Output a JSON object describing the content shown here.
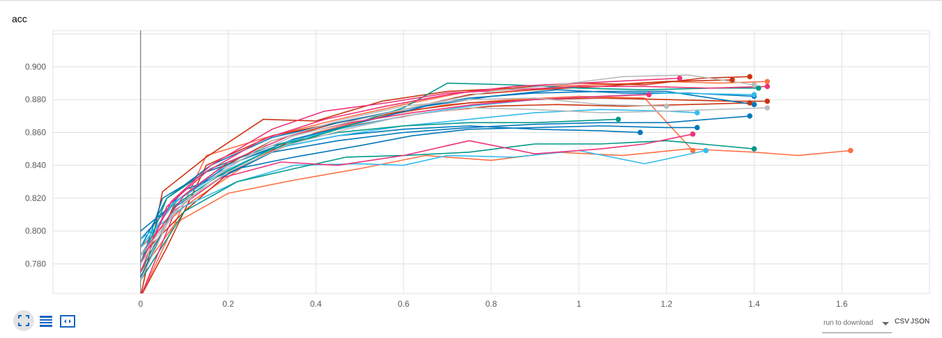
{
  "title": "acc",
  "toolbar": {
    "expand_icon": "fullscreen-icon",
    "log_icon": "list-icon",
    "fit_icon": "fit-domain-icon",
    "run_select_label": "run to download",
    "csv_label": "CSV",
    "json_label": "JSON"
  },
  "colors": {
    "accent": "#1565c0",
    "grid": "#e0e0e0",
    "axis": "#5a5a5a",
    "zero_line": "#616161"
  },
  "chart_data": {
    "type": "line",
    "title": "acc",
    "xlabel": "",
    "ylabel": "",
    "xlim": [
      -0.2,
      1.8
    ],
    "ylim": [
      0.762,
      0.922
    ],
    "x_ticks": [
      "0",
      "0.2",
      "0.4",
      "0.6",
      "0.8",
      "1",
      "1.2",
      "1.4",
      "1.6"
    ],
    "y_ticks": [
      "0.780",
      "0.800",
      "0.820",
      "0.840",
      "0.860",
      "0.880",
      "0.900"
    ],
    "grid": true,
    "legend": "none",
    "series": [
      {
        "color": "#ff7043",
        "x": [
          0,
          0.15,
          0.3,
          0.45,
          0.6,
          0.75,
          0.9,
          1.05,
          1.2,
          1.32,
          1.43
        ],
        "y": [
          0.76,
          0.846,
          0.858,
          0.868,
          0.877,
          0.885,
          0.888,
          0.889,
          0.891,
          0.89,
          0.891
        ]
      },
      {
        "color": "#ff7043",
        "x": [
          0,
          0.08,
          0.2,
          0.35,
          0.5,
          0.65,
          0.8,
          0.95,
          1.1,
          1.25,
          1.4,
          1.5,
          1.62
        ],
        "y": [
          0.775,
          0.805,
          0.823,
          0.831,
          0.838,
          0.846,
          0.843,
          0.848,
          0.846,
          0.85,
          0.848,
          0.846,
          0.849
        ]
      },
      {
        "color": "#ff7043",
        "x": [
          0,
          0.1,
          0.25,
          0.4,
          0.55,
          0.7,
          0.85,
          1.0,
          1.15,
          1.26
        ],
        "y": [
          0.79,
          0.815,
          0.842,
          0.86,
          0.87,
          0.877,
          0.88,
          0.882,
          0.881,
          0.849
        ]
      },
      {
        "color": "#cc3311",
        "x": [
          0,
          0.05,
          0.15,
          0.28,
          0.4,
          0.55,
          0.7,
          0.85,
          1.0,
          1.15,
          1.28,
          1.39
        ],
        "y": [
          0.76,
          0.824,
          0.845,
          0.868,
          0.867,
          0.879,
          0.885,
          0.887,
          0.89,
          0.889,
          0.893,
          0.894
        ]
      },
      {
        "color": "#cc3311",
        "x": [
          0,
          0.06,
          0.15,
          0.3,
          0.45,
          0.6,
          0.75,
          0.9,
          1.05,
          1.2,
          1.35,
          1.43
        ],
        "y": [
          0.76,
          0.79,
          0.84,
          0.858,
          0.866,
          0.873,
          0.878,
          0.88,
          0.881,
          0.88,
          0.879,
          0.879
        ]
      },
      {
        "color": "#cc3311",
        "x": [
          0,
          0.1,
          0.2,
          0.35,
          0.5,
          0.65,
          0.8,
          0.95,
          1.1,
          1.25,
          1.39
        ],
        "y": [
          0.785,
          0.812,
          0.835,
          0.856,
          0.865,
          0.872,
          0.876,
          0.877,
          0.876,
          0.877,
          0.878
        ]
      },
      {
        "color": "#cc3311",
        "x": [
          0,
          0.08,
          0.18,
          0.3,
          0.45,
          0.6,
          0.75,
          0.9,
          1.05,
          1.2,
          1.35
        ],
        "y": [
          0.77,
          0.818,
          0.838,
          0.855,
          0.866,
          0.874,
          0.883,
          0.886,
          0.888,
          0.891,
          0.892
        ]
      },
      {
        "color": "#0077bb",
        "x": [
          0,
          0.05,
          0.15,
          0.3,
          0.45,
          0.6,
          0.75,
          0.9,
          1.05,
          1.14
        ],
        "y": [
          0.78,
          0.82,
          0.836,
          0.85,
          0.858,
          0.862,
          0.864,
          0.862,
          0.861,
          0.86
        ]
      },
      {
        "color": "#0077bb",
        "x": [
          0,
          0.08,
          0.18,
          0.3,
          0.45,
          0.6,
          0.75,
          0.9,
          1.05,
          1.2,
          1.39
        ],
        "y": [
          0.772,
          0.815,
          0.832,
          0.848,
          0.855,
          0.86,
          0.863,
          0.865,
          0.866,
          0.866,
          0.87
        ]
      },
      {
        "color": "#0077bb",
        "x": [
          0,
          0.1,
          0.22,
          0.35,
          0.5,
          0.62,
          0.75,
          0.9,
          1.05,
          1.2,
          1.27
        ],
        "y": [
          0.795,
          0.825,
          0.838,
          0.845,
          0.852,
          0.858,
          0.862,
          0.863,
          0.864,
          0.863,
          0.863
        ]
      },
      {
        "color": "#0077bb",
        "x": [
          0,
          0.06,
          0.16,
          0.3,
          0.45,
          0.6,
          0.75,
          0.9,
          1.05,
          1.2,
          1.4
        ],
        "y": [
          0.79,
          0.82,
          0.84,
          0.857,
          0.866,
          0.874,
          0.881,
          0.884,
          0.885,
          0.885,
          0.877
        ]
      },
      {
        "color": "#0077bb",
        "x": [
          0,
          0.1,
          0.2,
          0.35,
          0.5,
          0.65,
          0.8,
          0.95,
          1.1,
          1.25,
          1.4
        ],
        "y": [
          0.8,
          0.822,
          0.84,
          0.856,
          0.866,
          0.876,
          0.882,
          0.886,
          0.884,
          0.884,
          0.882
        ]
      },
      {
        "color": "#33bbee",
        "x": [
          0,
          0.1,
          0.22,
          0.35,
          0.5,
          0.6,
          0.7,
          0.85,
          1.0,
          1.15,
          1.29
        ],
        "y": [
          0.795,
          0.815,
          0.83,
          0.84,
          0.841,
          0.84,
          0.846,
          0.845,
          0.849,
          0.841,
          0.849
        ]
      },
      {
        "color": "#33bbee",
        "x": [
          0,
          0.08,
          0.18,
          0.3,
          0.45,
          0.6,
          0.75,
          0.9,
          1.05,
          1.2,
          1.27
        ],
        "y": [
          0.79,
          0.818,
          0.835,
          0.85,
          0.858,
          0.864,
          0.868,
          0.872,
          0.874,
          0.873,
          0.872
        ]
      },
      {
        "color": "#33bbee",
        "x": [
          0,
          0.07,
          0.17,
          0.3,
          0.45,
          0.6,
          0.75,
          0.9,
          1.05,
          1.2,
          1.4
        ],
        "y": [
          0.785,
          0.816,
          0.836,
          0.852,
          0.862,
          0.87,
          0.876,
          0.88,
          0.882,
          0.884,
          0.883
        ]
      },
      {
        "color": "#009988",
        "x": [
          0,
          0.1,
          0.22,
          0.35,
          0.47,
          0.6,
          0.75,
          0.9,
          1.05,
          1.2,
          1.4
        ],
        "y": [
          0.77,
          0.812,
          0.83,
          0.838,
          0.845,
          0.846,
          0.848,
          0.853,
          0.853,
          0.855,
          0.85
        ]
      },
      {
        "color": "#009988",
        "x": [
          0,
          0.08,
          0.18,
          0.3,
          0.45,
          0.6,
          0.7,
          0.85,
          1.0,
          1.15,
          1.3,
          1.41
        ],
        "y": [
          0.775,
          0.816,
          0.834,
          0.85,
          0.862,
          0.875,
          0.89,
          0.889,
          0.887,
          0.886,
          0.887,
          0.887
        ]
      },
      {
        "color": "#009988",
        "x": [
          0,
          0.06,
          0.16,
          0.3,
          0.45,
          0.6,
          0.75,
          0.9,
          1.09
        ],
        "y": [
          0.78,
          0.82,
          0.838,
          0.852,
          0.86,
          0.864,
          0.866,
          0.866,
          0.868
        ]
      },
      {
        "color": "#ee3377",
        "x": [
          0,
          0.08,
          0.18,
          0.32,
          0.45,
          0.6,
          0.75,
          0.9,
          1.05,
          1.15,
          1.26
        ],
        "y": [
          0.76,
          0.813,
          0.832,
          0.842,
          0.84,
          0.846,
          0.855,
          0.847,
          0.85,
          0.853,
          0.859
        ]
      },
      {
        "color": "#ee3377",
        "x": [
          0,
          0.07,
          0.16,
          0.3,
          0.42,
          0.56,
          0.7,
          0.85,
          1.0,
          1.15,
          1.3,
          1.43
        ],
        "y": [
          0.78,
          0.818,
          0.84,
          0.862,
          0.873,
          0.878,
          0.884,
          0.886,
          0.888,
          0.888,
          0.887,
          0.888
        ]
      },
      {
        "color": "#ee3377",
        "x": [
          0,
          0.1,
          0.2,
          0.34,
          0.48,
          0.62,
          0.76,
          0.9,
          1.05,
          1.16
        ],
        "y": [
          0.785,
          0.822,
          0.842,
          0.858,
          0.866,
          0.872,
          0.877,
          0.88,
          0.882,
          0.883
        ]
      },
      {
        "color": "#ee3377",
        "x": [
          0,
          0.06,
          0.15,
          0.28,
          0.42,
          0.56,
          0.7,
          0.85,
          1.0,
          1.15,
          1.23
        ],
        "y": [
          0.775,
          0.815,
          0.836,
          0.856,
          0.868,
          0.876,
          0.883,
          0.888,
          0.89,
          0.892,
          0.893
        ]
      },
      {
        "color": "#bbbbbb",
        "x": [
          0,
          0.08,
          0.2,
          0.35,
          0.5,
          0.65,
          0.8,
          0.95,
          1.1,
          1.25,
          1.4
        ],
        "y": [
          0.78,
          0.812,
          0.84,
          0.858,
          0.868,
          0.877,
          0.885,
          0.889,
          0.894,
          0.895,
          0.889
        ]
      },
      {
        "color": "#bbbbbb",
        "x": [
          0,
          0.1,
          0.2,
          0.33,
          0.47,
          0.6,
          0.75,
          0.9,
          1.05,
          1.2,
          1.43
        ],
        "y": [
          0.785,
          0.818,
          0.836,
          0.852,
          0.862,
          0.87,
          0.875,
          0.874,
          0.872,
          0.873,
          0.875
        ]
      },
      {
        "color": "#bbbbbb",
        "x": [
          0,
          0.07,
          0.18,
          0.3,
          0.45,
          0.6,
          0.75,
          0.9,
          1.05,
          1.2
        ],
        "y": [
          0.77,
          0.81,
          0.835,
          0.855,
          0.867,
          0.876,
          0.88,
          0.881,
          0.877,
          0.876
        ]
      }
    ]
  }
}
